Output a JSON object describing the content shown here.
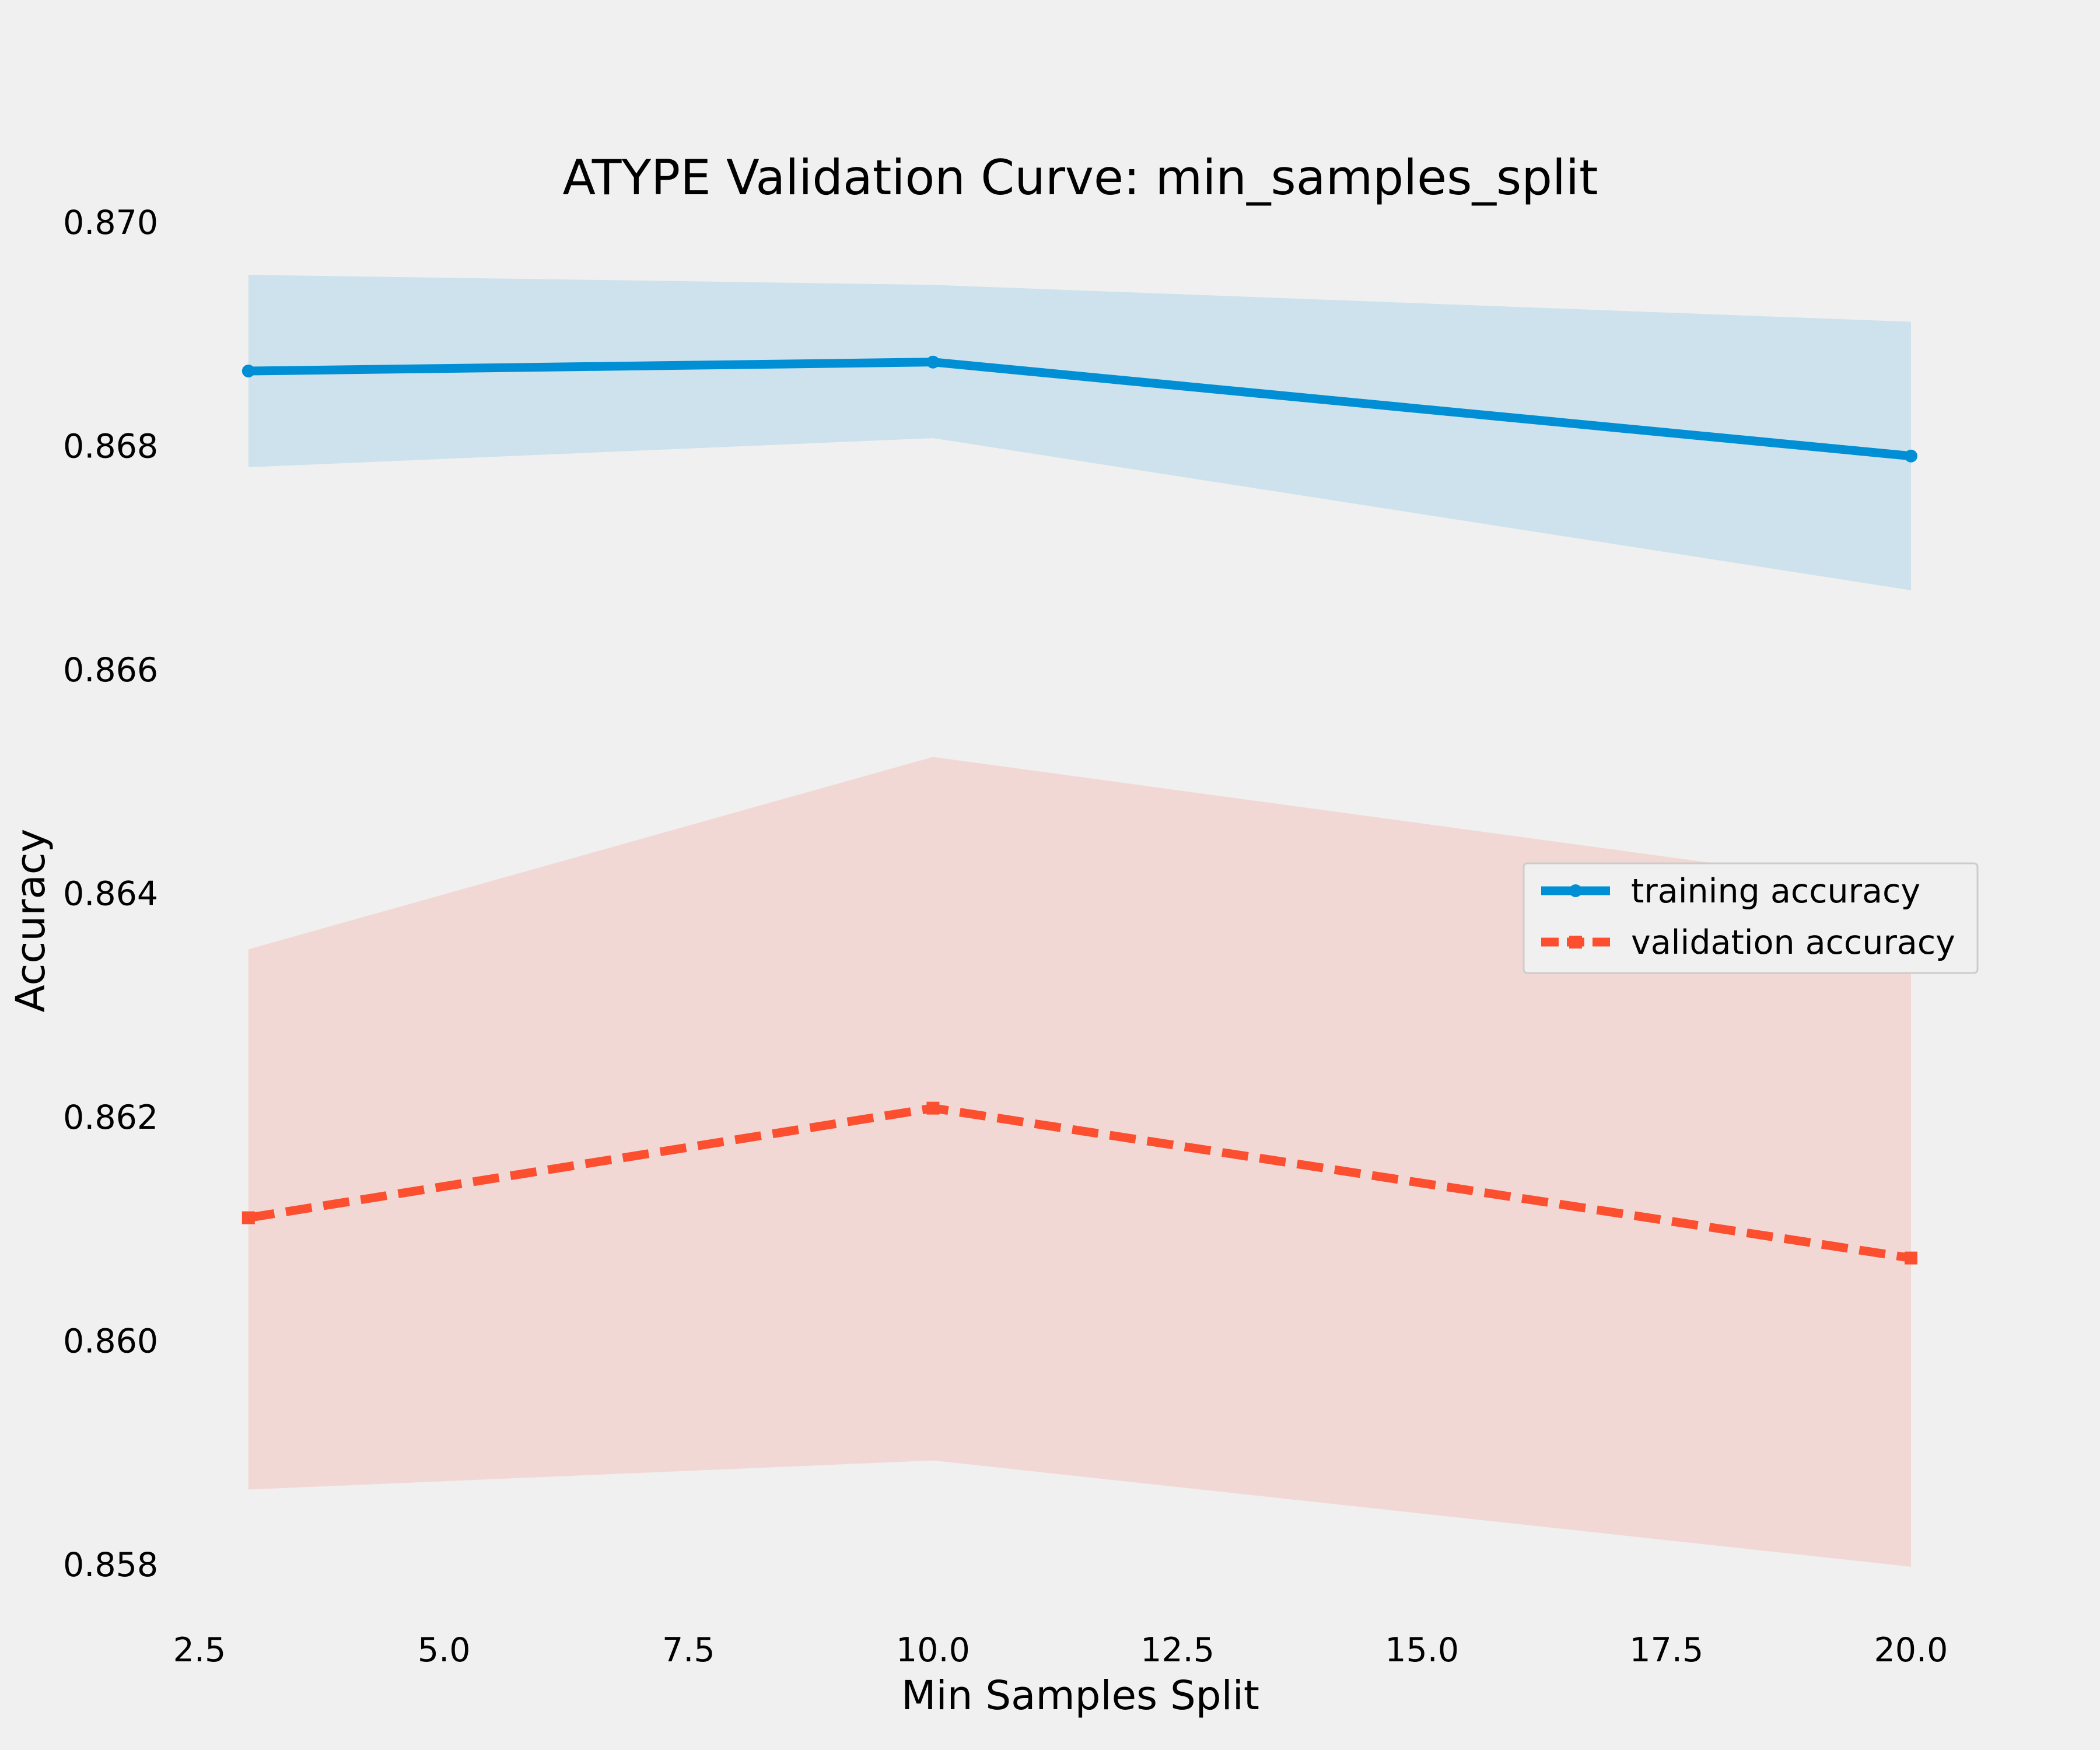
{
  "chart_data": {
    "type": "line",
    "title": "ATYPE Validation Curve: min_samples_split",
    "xlabel": "Min Samples Split",
    "ylabel": "Accuracy",
    "xlim": [
      2.5,
      20.0
    ],
    "ylim": [
      0.858,
      0.87
    ],
    "xticks": [
      2.5,
      5.0,
      7.5,
      10.0,
      12.5,
      15.0,
      17.5,
      20.0
    ],
    "xtick_labels": [
      "2.5",
      "5.0",
      "7.5",
      "10.0",
      "12.5",
      "15.0",
      "17.5",
      "20.0"
    ],
    "yticks": [
      0.858,
      0.86,
      0.862,
      0.864,
      0.866,
      0.868,
      0.87
    ],
    "ytick_labels": [
      "0.858",
      "0.860",
      "0.862",
      "0.864",
      "0.866",
      "0.868",
      "0.870"
    ],
    "grid": false,
    "legend_position": "center-right",
    "x": [
      3,
      10,
      20
    ],
    "series": [
      {
        "name": "training accuracy",
        "values": [
          0.86867,
          0.86875,
          0.86791
        ],
        "band_upper": [
          0.86953,
          0.86944,
          0.86911
        ],
        "band_lower": [
          0.86781,
          0.86807,
          0.86671
        ],
        "color": "#008fd5",
        "band_color": "#cde2ec",
        "line_style": "solid",
        "marker": "circle"
      },
      {
        "name": "validation accuracy",
        "values": [
          0.8611,
          0.86208,
          0.86074
        ],
        "band_upper": [
          0.8635,
          0.86522,
          0.86403
        ],
        "band_lower": [
          0.85867,
          0.85893,
          0.85798
        ],
        "color": "#fc4f30",
        "band_color": "#f2d8d4",
        "line_style": "dashed",
        "marker": "square"
      }
    ]
  }
}
